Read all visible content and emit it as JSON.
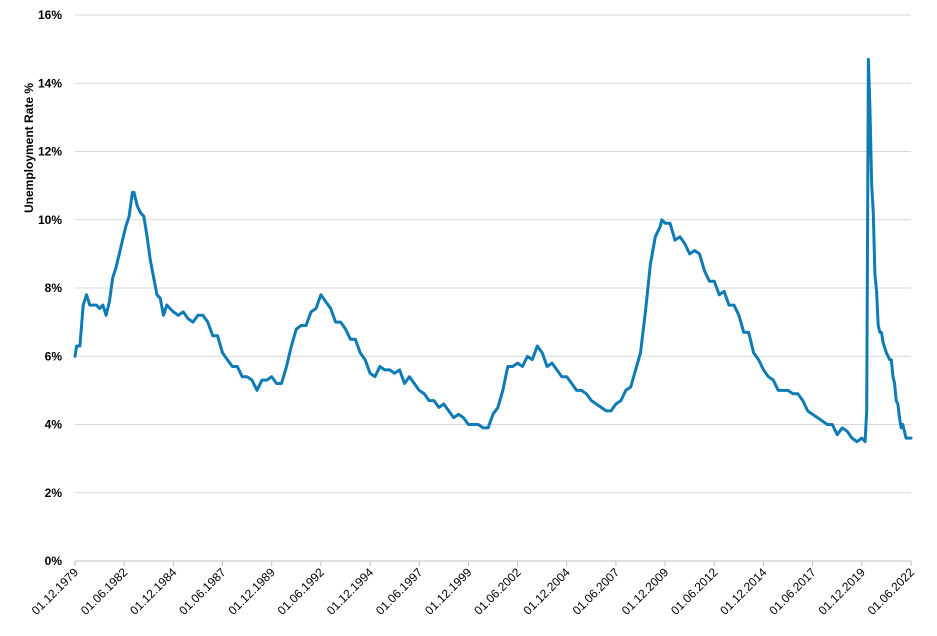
{
  "chart_data": {
    "type": "line",
    "ylabel": "Unemployment Rate %",
    "xlabel": "",
    "ylim": [
      0,
      16
    ],
    "yticks": [
      0,
      2,
      4,
      6,
      8,
      10,
      12,
      14,
      16
    ],
    "ytick_labels": [
      "0%",
      "2%",
      "4%",
      "6%",
      "8%",
      "10%",
      "12%",
      "14%",
      "16%"
    ],
    "x_range": [
      "1979-12",
      "2022-06"
    ],
    "xticks": [
      "1979-12",
      "1982-06",
      "1984-12",
      "1987-06",
      "1989-12",
      "1992-06",
      "1994-12",
      "1997-06",
      "1999-12",
      "2002-06",
      "2004-12",
      "2007-06",
      "2009-12",
      "2012-06",
      "2014-12",
      "2017-06",
      "2019-12",
      "2022-06"
    ],
    "xtick_labels": [
      "01.12.1979",
      "01.06.1982",
      "01.12.1984",
      "01.06.1987",
      "01.12.1989",
      "01.06.1992",
      "01.12.1994",
      "01.06.1997",
      "01.12.1999",
      "01.06.2002",
      "01.12.2004",
      "01.06.2007",
      "01.12.2009",
      "01.06.2012",
      "01.12.2014",
      "01.06.2017",
      "01.12.2019",
      "01.06.2022"
    ],
    "grid": "horizontal",
    "color": "#0e7bb6",
    "series": [
      {
        "points": [
          [
            "1979-12",
            6.0
          ],
          [
            "1980-01",
            6.3
          ],
          [
            "1980-03",
            6.3
          ],
          [
            "1980-05",
            7.5
          ],
          [
            "1980-07",
            7.8
          ],
          [
            "1980-09",
            7.5
          ],
          [
            "1980-11",
            7.5
          ],
          [
            "1981-01",
            7.5
          ],
          [
            "1981-03",
            7.4
          ],
          [
            "1981-05",
            7.5
          ],
          [
            "1981-07",
            7.2
          ],
          [
            "1981-09",
            7.6
          ],
          [
            "1981-11",
            8.3
          ],
          [
            "1982-01",
            8.6
          ],
          [
            "1982-03",
            9.0
          ],
          [
            "1982-05",
            9.4
          ],
          [
            "1982-07",
            9.8
          ],
          [
            "1982-09",
            10.1
          ],
          [
            "1982-11",
            10.8
          ],
          [
            "1982-12",
            10.8
          ],
          [
            "1983-02",
            10.4
          ],
          [
            "1983-04",
            10.2
          ],
          [
            "1983-06",
            10.1
          ],
          [
            "1983-08",
            9.5
          ],
          [
            "1983-10",
            8.8
          ],
          [
            "1983-12",
            8.3
          ],
          [
            "1984-02",
            7.8
          ],
          [
            "1984-04",
            7.7
          ],
          [
            "1984-06",
            7.2
          ],
          [
            "1984-08",
            7.5
          ],
          [
            "1984-10",
            7.4
          ],
          [
            "1984-12",
            7.3
          ],
          [
            "1985-03",
            7.2
          ],
          [
            "1985-06",
            7.3
          ],
          [
            "1985-09",
            7.1
          ],
          [
            "1985-12",
            7.0
          ],
          [
            "1986-03",
            7.2
          ],
          [
            "1986-06",
            7.2
          ],
          [
            "1986-09",
            7.0
          ],
          [
            "1986-12",
            6.6
          ],
          [
            "1987-03",
            6.6
          ],
          [
            "1987-06",
            6.1
          ],
          [
            "1987-09",
            5.9
          ],
          [
            "1987-12",
            5.7
          ],
          [
            "1988-03",
            5.7
          ],
          [
            "1988-06",
            5.4
          ],
          [
            "1988-09",
            5.4
          ],
          [
            "1988-12",
            5.3
          ],
          [
            "1989-03",
            5.0
          ],
          [
            "1989-06",
            5.3
          ],
          [
            "1989-09",
            5.3
          ],
          [
            "1989-12",
            5.4
          ],
          [
            "1990-03",
            5.2
          ],
          [
            "1990-06",
            5.2
          ],
          [
            "1990-09",
            5.7
          ],
          [
            "1990-12",
            6.3
          ],
          [
            "1991-03",
            6.8
          ],
          [
            "1991-06",
            6.9
          ],
          [
            "1991-09",
            6.9
          ],
          [
            "1991-12",
            7.3
          ],
          [
            "1992-03",
            7.4
          ],
          [
            "1992-06",
            7.8
          ],
          [
            "1992-09",
            7.6
          ],
          [
            "1992-12",
            7.4
          ],
          [
            "1993-03",
            7.0
          ],
          [
            "1993-06",
            7.0
          ],
          [
            "1993-09",
            6.8
          ],
          [
            "1993-12",
            6.5
          ],
          [
            "1994-03",
            6.5
          ],
          [
            "1994-06",
            6.1
          ],
          [
            "1994-09",
            5.9
          ],
          [
            "1994-12",
            5.5
          ],
          [
            "1995-03",
            5.4
          ],
          [
            "1995-06",
            5.7
          ],
          [
            "1995-09",
            5.6
          ],
          [
            "1995-12",
            5.6
          ],
          [
            "1996-03",
            5.5
          ],
          [
            "1996-06",
            5.6
          ],
          [
            "1996-09",
            5.2
          ],
          [
            "1996-12",
            5.4
          ],
          [
            "1997-03",
            5.2
          ],
          [
            "1997-06",
            5.0
          ],
          [
            "1997-09",
            4.9
          ],
          [
            "1997-12",
            4.7
          ],
          [
            "1998-03",
            4.7
          ],
          [
            "1998-06",
            4.5
          ],
          [
            "1998-09",
            4.6
          ],
          [
            "1998-12",
            4.4
          ],
          [
            "1999-03",
            4.2
          ],
          [
            "1999-06",
            4.3
          ],
          [
            "1999-09",
            4.2
          ],
          [
            "1999-12",
            4.0
          ],
          [
            "2000-03",
            4.0
          ],
          [
            "2000-06",
            4.0
          ],
          [
            "2000-09",
            3.9
          ],
          [
            "2000-12",
            3.9
          ],
          [
            "2001-03",
            4.3
          ],
          [
            "2001-06",
            4.5
          ],
          [
            "2001-09",
            5.0
          ],
          [
            "2001-12",
            5.7
          ],
          [
            "2002-03",
            5.7
          ],
          [
            "2002-06",
            5.8
          ],
          [
            "2002-09",
            5.7
          ],
          [
            "2002-12",
            6.0
          ],
          [
            "2003-03",
            5.9
          ],
          [
            "2003-06",
            6.3
          ],
          [
            "2003-09",
            6.1
          ],
          [
            "2003-12",
            5.7
          ],
          [
            "2004-03",
            5.8
          ],
          [
            "2004-06",
            5.6
          ],
          [
            "2004-09",
            5.4
          ],
          [
            "2004-12",
            5.4
          ],
          [
            "2005-03",
            5.2
          ],
          [
            "2005-06",
            5.0
          ],
          [
            "2005-09",
            5.0
          ],
          [
            "2005-12",
            4.9
          ],
          [
            "2006-03",
            4.7
          ],
          [
            "2006-06",
            4.6
          ],
          [
            "2006-09",
            4.5
          ],
          [
            "2006-12",
            4.4
          ],
          [
            "2007-03",
            4.4
          ],
          [
            "2007-06",
            4.6
          ],
          [
            "2007-09",
            4.7
          ],
          [
            "2007-12",
            5.0
          ],
          [
            "2008-03",
            5.1
          ],
          [
            "2008-06",
            5.6
          ],
          [
            "2008-09",
            6.1
          ],
          [
            "2008-12",
            7.3
          ],
          [
            "2009-03",
            8.7
          ],
          [
            "2009-06",
            9.5
          ],
          [
            "2009-09",
            9.8
          ],
          [
            "2009-10",
            10.0
          ],
          [
            "2009-12",
            9.9
          ],
          [
            "2010-03",
            9.9
          ],
          [
            "2010-06",
            9.4
          ],
          [
            "2010-09",
            9.5
          ],
          [
            "2010-12",
            9.3
          ],
          [
            "2011-03",
            9.0
          ],
          [
            "2011-06",
            9.1
          ],
          [
            "2011-09",
            9.0
          ],
          [
            "2011-12",
            8.5
          ],
          [
            "2012-03",
            8.2
          ],
          [
            "2012-06",
            8.2
          ],
          [
            "2012-09",
            7.8
          ],
          [
            "2012-12",
            7.9
          ],
          [
            "2013-03",
            7.5
          ],
          [
            "2013-06",
            7.5
          ],
          [
            "2013-09",
            7.2
          ],
          [
            "2013-12",
            6.7
          ],
          [
            "2014-03",
            6.7
          ],
          [
            "2014-06",
            6.1
          ],
          [
            "2014-09",
            5.9
          ],
          [
            "2014-12",
            5.6
          ],
          [
            "2015-03",
            5.4
          ],
          [
            "2015-06",
            5.3
          ],
          [
            "2015-09",
            5.0
          ],
          [
            "2015-12",
            5.0
          ],
          [
            "2016-03",
            5.0
          ],
          [
            "2016-06",
            4.9
          ],
          [
            "2016-09",
            4.9
          ],
          [
            "2016-12",
            4.7
          ],
          [
            "2017-03",
            4.4
          ],
          [
            "2017-06",
            4.3
          ],
          [
            "2017-09",
            4.2
          ],
          [
            "2017-12",
            4.1
          ],
          [
            "2018-03",
            4.0
          ],
          [
            "2018-06",
            4.0
          ],
          [
            "2018-09",
            3.7
          ],
          [
            "2018-12",
            3.9
          ],
          [
            "2019-03",
            3.8
          ],
          [
            "2019-06",
            3.6
          ],
          [
            "2019-09",
            3.5
          ],
          [
            "2019-12",
            3.6
          ],
          [
            "2020-02",
            3.5
          ],
          [
            "2020-03",
            4.4
          ],
          [
            "2020-04",
            14.7
          ],
          [
            "2020-05",
            13.2
          ],
          [
            "2020-06",
            11.0
          ],
          [
            "2020-07",
            10.2
          ],
          [
            "2020-08",
            8.4
          ],
          [
            "2020-09",
            7.9
          ],
          [
            "2020-10",
            6.9
          ],
          [
            "2020-11",
            6.7
          ],
          [
            "2020-12",
            6.7
          ],
          [
            "2021-01",
            6.4
          ],
          [
            "2021-03",
            6.1
          ],
          [
            "2021-05",
            5.9
          ],
          [
            "2021-06",
            5.9
          ],
          [
            "2021-07",
            5.4
          ],
          [
            "2021-08",
            5.2
          ],
          [
            "2021-09",
            4.7
          ],
          [
            "2021-10",
            4.6
          ],
          [
            "2021-11",
            4.2
          ],
          [
            "2021-12",
            3.9
          ],
          [
            "2022-01",
            4.0
          ],
          [
            "2022-02",
            3.8
          ],
          [
            "2022-03",
            3.6
          ],
          [
            "2022-06",
            3.6
          ]
        ]
      }
    ]
  }
}
